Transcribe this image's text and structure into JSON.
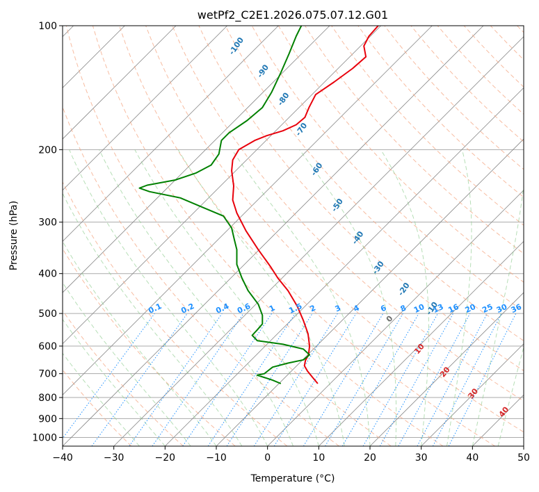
{
  "chart_data": {
    "type": "line",
    "title": "wetPf2_C2E1.2026.075.07.12.G01",
    "xlabel": "Temperature (°C)",
    "ylabel": "Pressure (hPa)",
    "xlim": [
      -40,
      50
    ],
    "ylim": [
      1050,
      100
    ],
    "y_scale": "log",
    "grid": true,
    "x_ticks": [
      -40,
      -30,
      -20,
      -10,
      0,
      10,
      20,
      30,
      40,
      50
    ],
    "y_ticks": [
      100,
      200,
      300,
      400,
      500,
      600,
      700,
      800,
      900,
      1000
    ],
    "series": [
      {
        "name": "",
        "color": "#e8000b",
        "points": [
          [
            9.8,
            740
          ],
          [
            8.8,
            715
          ],
          [
            7.8,
            690
          ],
          [
            7.2,
            670
          ],
          [
            7.4,
            650
          ],
          [
            8.0,
            630
          ],
          [
            8.2,
            600
          ],
          [
            7.9,
            560
          ],
          [
            7.0,
            520
          ],
          [
            5.8,
            480
          ],
          [
            4.0,
            440
          ],
          [
            2.0,
            410
          ],
          [
            0.6,
            385
          ],
          [
            -1.8,
            350
          ],
          [
            -4.2,
            315
          ],
          [
            -6.0,
            285
          ],
          [
            -6.8,
            265
          ],
          [
            -6.6,
            245
          ],
          [
            -7.0,
            225
          ],
          [
            -6.8,
            212
          ],
          [
            -5.6,
            200
          ],
          [
            -2.5,
            190
          ],
          [
            -0.2,
            185
          ],
          [
            3.0,
            180
          ],
          [
            5.6,
            174
          ],
          [
            7.3,
            167
          ],
          [
            8.1,
            158
          ],
          [
            9.4,
            147
          ],
          [
            13.0,
            137
          ],
          [
            16.6,
            127
          ],
          [
            19.2,
            119
          ],
          [
            18.8,
            112
          ],
          [
            19.8,
            106
          ],
          [
            21.6,
            100
          ]
        ]
      },
      {
        "name": "",
        "color": "#008000",
        "points": [
          [
            2.6,
            740
          ],
          [
            1.0,
            726
          ],
          [
            -0.5,
            716
          ],
          [
            -2.0,
            706
          ],
          [
            -0.6,
            700
          ],
          [
            0.0,
            690
          ],
          [
            1.0,
            675
          ],
          [
            4.0,
            660
          ],
          [
            7.0,
            648
          ],
          [
            8.2,
            630
          ],
          [
            7.0,
            610
          ],
          [
            3.0,
            594
          ],
          [
            -2.0,
            582
          ],
          [
            -3.0,
            565
          ],
          [
            -2.0,
            548
          ],
          [
            -1.0,
            530
          ],
          [
            -1.0,
            505
          ],
          [
            -1.8,
            475
          ],
          [
            -3.8,
            440
          ],
          [
            -5.0,
            410
          ],
          [
            -6.0,
            380
          ],
          [
            -6.0,
            350
          ],
          [
            -6.5,
            330
          ],
          [
            -7.0,
            310
          ],
          [
            -8.6,
            290
          ],
          [
            -13.0,
            275
          ],
          [
            -17.0,
            262
          ],
          [
            -23.0,
            253
          ],
          [
            -25.0,
            248
          ],
          [
            -23.5,
            244
          ],
          [
            -18.0,
            237
          ],
          [
            -14.0,
            228
          ],
          [
            -11.0,
            218
          ],
          [
            -9.5,
            205
          ],
          [
            -9.0,
            190
          ],
          [
            -7.5,
            182
          ],
          [
            -4.0,
            170
          ],
          [
            -1.0,
            158
          ],
          [
            0.8,
            145
          ],
          [
            2.6,
            130
          ],
          [
            4.2,
            117
          ],
          [
            5.6,
            106
          ],
          [
            6.6,
            100
          ]
        ]
      }
    ],
    "annotations": {
      "dry_adiabats": [
        "-100",
        "-90",
        "-80",
        "-70",
        "-60",
        "-50",
        "-40",
        "-30",
        "-20",
        "-10"
      ],
      "moist_adiabats": [
        "0",
        "10",
        "20",
        "30",
        "40"
      ],
      "mixing_ratios": [
        "0.1",
        "0.2",
        "0.4",
        "0.6",
        "1",
        "1.5",
        "2",
        "3",
        "4",
        "6",
        "8",
        "10",
        "13",
        "16",
        "20",
        "25",
        "30",
        "36"
      ]
    }
  },
  "colors": {
    "dry_adiabat_label": "#1f77b4",
    "moist_adiabat_label": "#d62728",
    "zero_label": "#6d6d6d",
    "mixing_label": "#1e90ff",
    "grid": "#aaaaaa",
    "isotherm": "#888888"
  }
}
